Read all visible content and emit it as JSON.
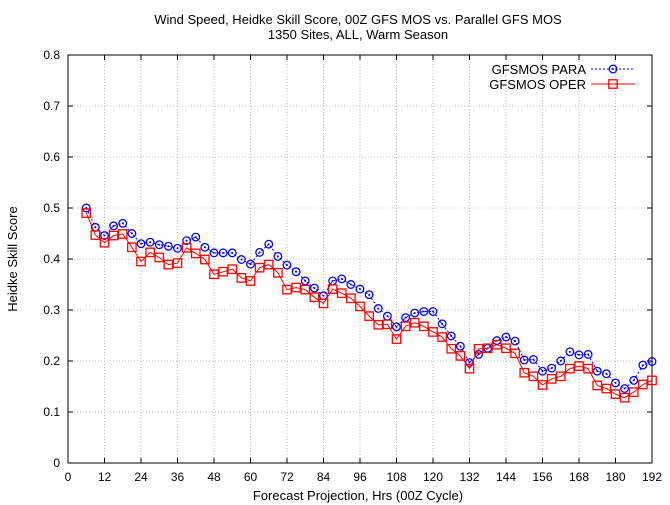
{
  "chart_data": {
    "type": "line",
    "title": "Wind Speed, Heidke Skill Score, 00Z GFS MOS vs. Parallel GFS MOS",
    "subtitle": "1350 Sites, ALL, Warm Season",
    "xlabel": "Forecast Projection, Hrs (00Z Cycle)",
    "ylabel": "Heidke Skill Score",
    "xlim": [
      0,
      192
    ],
    "ylim": [
      0,
      0.8
    ],
    "xticks": [
      "0",
      "12",
      "24",
      "36",
      "48",
      "60",
      "72",
      "84",
      "96",
      "108",
      "120",
      "132",
      "144",
      "156",
      "168",
      "180",
      "192"
    ],
    "yticks": [
      "0",
      "0.1",
      "0.2",
      "0.3",
      "0.4",
      "0.5",
      "0.6",
      "0.7",
      "0.8"
    ],
    "grid": true,
    "legend_position": "top-right",
    "x": [
      6,
      9,
      12,
      15,
      18,
      21,
      24,
      27,
      30,
      33,
      36,
      39,
      42,
      45,
      48,
      51,
      54,
      57,
      60,
      63,
      66,
      69,
      72,
      75,
      78,
      81,
      84,
      87,
      90,
      93,
      96,
      99,
      102,
      105,
      108,
      111,
      114,
      117,
      120,
      123,
      126,
      129,
      132,
      135,
      138,
      141,
      144,
      147,
      150,
      153,
      156,
      159,
      162,
      165,
      168,
      171,
      174,
      177,
      180,
      183,
      186,
      189,
      192
    ],
    "series": [
      {
        "name": "GFSMOS PARA",
        "color": "#0000ff",
        "line_style": "dotted",
        "marker": "circle",
        "values": [
          0.5,
          0.462,
          0.446,
          0.465,
          0.47,
          0.45,
          0.43,
          0.433,
          0.428,
          0.425,
          0.421,
          0.436,
          0.443,
          0.423,
          0.412,
          0.412,
          0.412,
          0.399,
          0.39,
          0.413,
          0.429,
          0.405,
          0.388,
          0.375,
          0.357,
          0.343,
          0.328,
          0.357,
          0.361,
          0.35,
          0.341,
          0.33,
          0.303,
          0.288,
          0.267,
          0.285,
          0.294,
          0.297,
          0.297,
          0.273,
          0.249,
          0.229,
          0.197,
          0.213,
          0.225,
          0.24,
          0.247,
          0.239,
          0.202,
          0.203,
          0.18,
          0.186,
          0.2,
          0.218,
          0.212,
          0.213,
          0.18,
          0.175,
          0.157,
          0.146,
          0.162,
          0.192,
          0.199
        ]
      },
      {
        "name": "GFSMOS OPER",
        "color": "#ff0000",
        "line_style": "solid",
        "marker": "square",
        "values": [
          0.49,
          0.447,
          0.432,
          0.446,
          0.449,
          0.423,
          0.395,
          0.413,
          0.403,
          0.389,
          0.392,
          0.422,
          0.411,
          0.399,
          0.37,
          0.375,
          0.38,
          0.363,
          0.357,
          0.383,
          0.389,
          0.373,
          0.34,
          0.344,
          0.34,
          0.325,
          0.313,
          0.341,
          0.333,
          0.323,
          0.307,
          0.288,
          0.271,
          0.272,
          0.243,
          0.268,
          0.275,
          0.268,
          0.257,
          0.247,
          0.224,
          0.21,
          0.185,
          0.224,
          0.225,
          0.232,
          0.225,
          0.215,
          0.177,
          0.17,
          0.153,
          0.165,
          0.17,
          0.185,
          0.19,
          0.185,
          0.152,
          0.146,
          0.135,
          0.128,
          0.139,
          0.154,
          0.162
        ]
      }
    ]
  }
}
